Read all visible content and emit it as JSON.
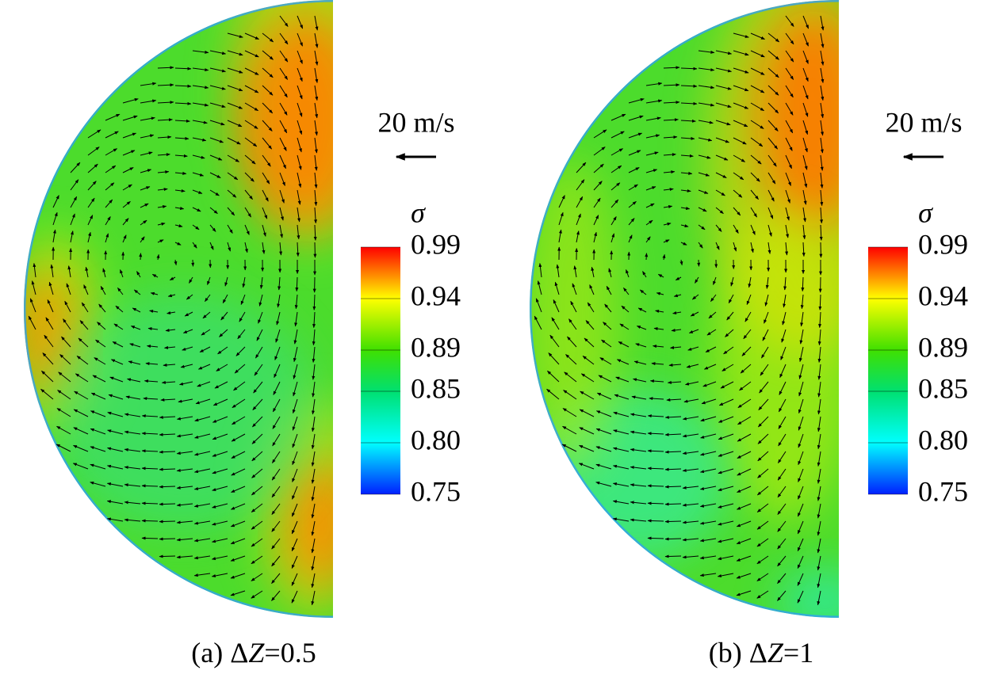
{
  "chart_data": [
    {
      "type": "contour",
      "colorbar_title": "σ",
      "clim": [
        0.75,
        0.99
      ],
      "cticks": [
        0.75,
        {
          "value": 0.8,
          "label": "0.80"
        },
        0.85,
        0.89,
        0.94,
        0.99
      ],
      "colormap": [
        {
          "value": 0.75,
          "color": "#0020ff"
        },
        {
          "value": 0.8,
          "color": "#00ffff"
        },
        {
          "value": 0.85,
          "color": "#00e070"
        },
        {
          "value": 0.89,
          "color": "#40e000"
        },
        {
          "value": 0.94,
          "color": "#ffff00"
        },
        {
          "value": 0.99,
          "color": "#ff0000"
        }
      ],
      "reference_vector": "20 m/s",
      "caption": {
        "prefix": "(a) Δ",
        "variable": "Z",
        "suffix": "=0.5"
      }
    },
    {
      "type": "contour",
      "colorbar_title": "σ",
      "clim": [
        0.75,
        0.99
      ],
      "cticks": [
        0.75,
        {
          "value": 0.8,
          "label": "0.80"
        },
        0.85,
        0.89,
        0.94,
        0.99
      ],
      "colormap": [
        {
          "value": 0.75,
          "color": "#0020ff"
        },
        {
          "value": 0.8,
          "color": "#00ffff"
        },
        {
          "value": 0.85,
          "color": "#00e070"
        },
        {
          "value": 0.89,
          "color": "#40e000"
        },
        {
          "value": 0.94,
          "color": "#ffff00"
        },
        {
          "value": 0.99,
          "color": "#ff0000"
        }
      ],
      "reference_vector": "20 m/s",
      "caption": {
        "prefix": "(b) Δ",
        "variable": "Z",
        "suffix": "=1"
      }
    }
  ]
}
